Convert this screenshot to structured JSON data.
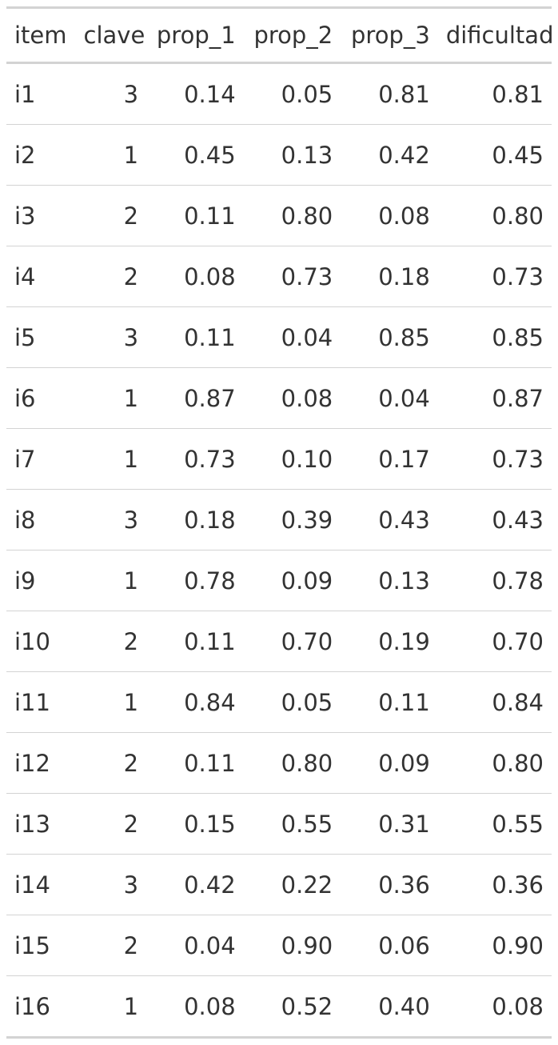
{
  "table": {
    "columns": [
      "item",
      "clave",
      "prop_1",
      "prop_2",
      "prop_3",
      "dificultad"
    ],
    "rows": [
      [
        "i1",
        "3",
        "0.14",
        "0.05",
        "0.81",
        "0.81"
      ],
      [
        "i2",
        "1",
        "0.45",
        "0.13",
        "0.42",
        "0.45"
      ],
      [
        "i3",
        "2",
        "0.11",
        "0.80",
        "0.08",
        "0.80"
      ],
      [
        "i4",
        "2",
        "0.08",
        "0.73",
        "0.18",
        "0.73"
      ],
      [
        "i5",
        "3",
        "0.11",
        "0.04",
        "0.85",
        "0.85"
      ],
      [
        "i6",
        "1",
        "0.87",
        "0.08",
        "0.04",
        "0.87"
      ],
      [
        "i7",
        "1",
        "0.73",
        "0.10",
        "0.17",
        "0.73"
      ],
      [
        "i8",
        "3",
        "0.18",
        "0.39",
        "0.43",
        "0.43"
      ],
      [
        "i9",
        "1",
        "0.78",
        "0.09",
        "0.13",
        "0.78"
      ],
      [
        "i10",
        "2",
        "0.11",
        "0.70",
        "0.19",
        "0.70"
      ],
      [
        "i11",
        "1",
        "0.84",
        "0.05",
        "0.11",
        "0.84"
      ],
      [
        "i12",
        "2",
        "0.11",
        "0.80",
        "0.09",
        "0.80"
      ],
      [
        "i13",
        "2",
        "0.15",
        "0.55",
        "0.31",
        "0.55"
      ],
      [
        "i14",
        "3",
        "0.42",
        "0.22",
        "0.36",
        "0.36"
      ],
      [
        "i15",
        "2",
        "0.04",
        "0.90",
        "0.06",
        "0.90"
      ],
      [
        "i16",
        "1",
        "0.08",
        "0.52",
        "0.40",
        "0.08"
      ]
    ]
  },
  "colors": {
    "text": "#333333",
    "rule": "#d3d3d3",
    "background": "#ffffff"
  }
}
